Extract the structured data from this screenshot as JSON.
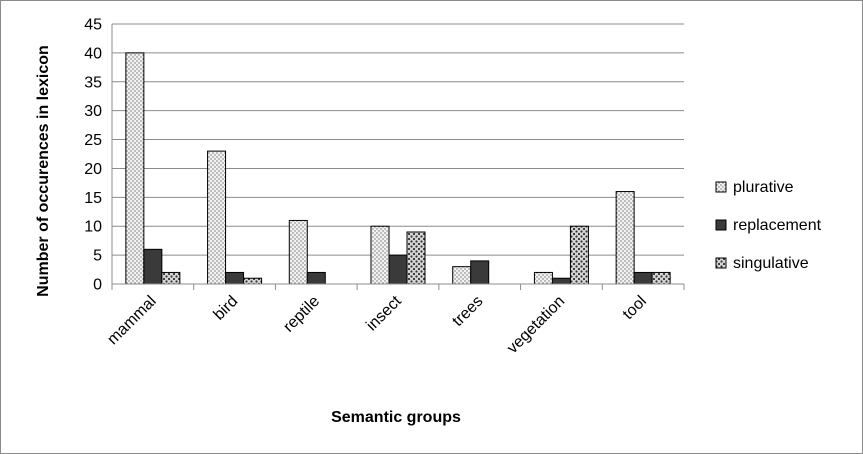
{
  "chart_data": {
    "type": "bar",
    "title": "",
    "xlabel": "Semantic groups",
    "ylabel": "Number of occurences in lexicon",
    "ylim": [
      0,
      45
    ],
    "yticks": [
      0,
      5,
      10,
      15,
      20,
      25,
      30,
      35,
      40,
      45
    ],
    "grid": true,
    "legend_position": "right",
    "categories": [
      "mammal",
      "bird",
      "reptile",
      "insect",
      "trees",
      "vegetation",
      "tool"
    ],
    "series": [
      {
        "name": "plurative",
        "values": [
          40,
          23,
          11,
          10,
          3,
          2,
          16
        ],
        "pattern": "light-dots",
        "color": "#d9d9d9"
      },
      {
        "name": "replacement",
        "values": [
          6,
          2,
          2,
          5,
          4,
          1,
          2
        ],
        "pattern": "solid-dark",
        "color": "#404040"
      },
      {
        "name": "singulative",
        "values": [
          2,
          1,
          0,
          9,
          0,
          10,
          2
        ],
        "pattern": "coarse-dots",
        "color": "#bfbfbf"
      }
    ]
  }
}
